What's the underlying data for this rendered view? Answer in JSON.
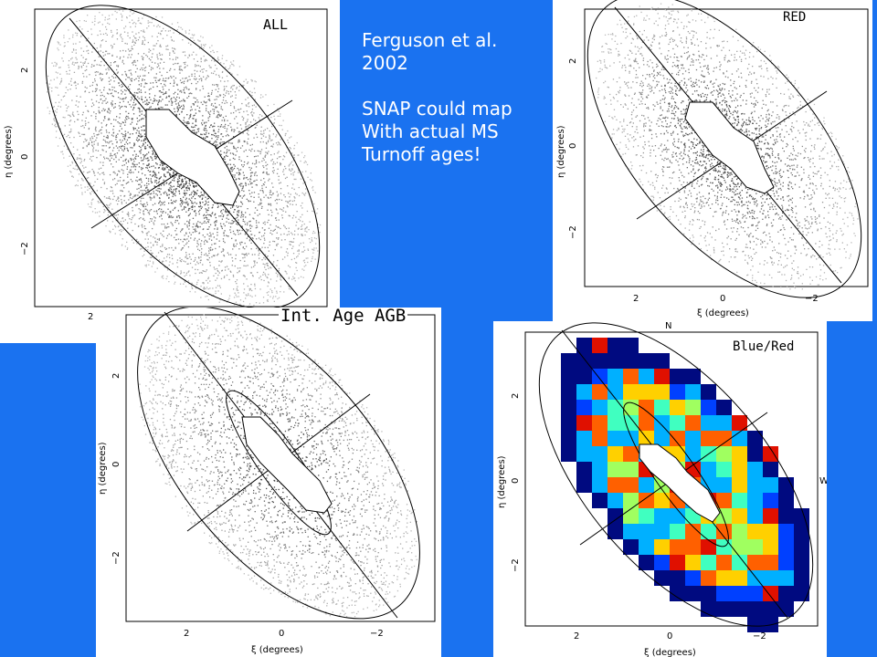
{
  "notes": {
    "line1": "Ferguson et al.",
    "line2": "2002",
    "line3": "SNAP could map",
    "line4": "With actual MS",
    "line5": "Turnoff ages!"
  },
  "panels": {
    "all": {
      "label": "ALL"
    },
    "red": {
      "label": "RED"
    },
    "agb": {
      "label": "Int. Age AGB"
    },
    "blue_red": {
      "label": "Blue/Red",
      "north": "N",
      "west": "W"
    }
  },
  "axes": {
    "xlabel": "ξ (degrees)",
    "ylabel": "η (degrees)",
    "y_ticks": [
      "2",
      "0",
      "−2"
    ],
    "x_ticks": [
      "2",
      "0",
      "−2"
    ]
  },
  "colors": {
    "background": "#1a72f0"
  }
}
